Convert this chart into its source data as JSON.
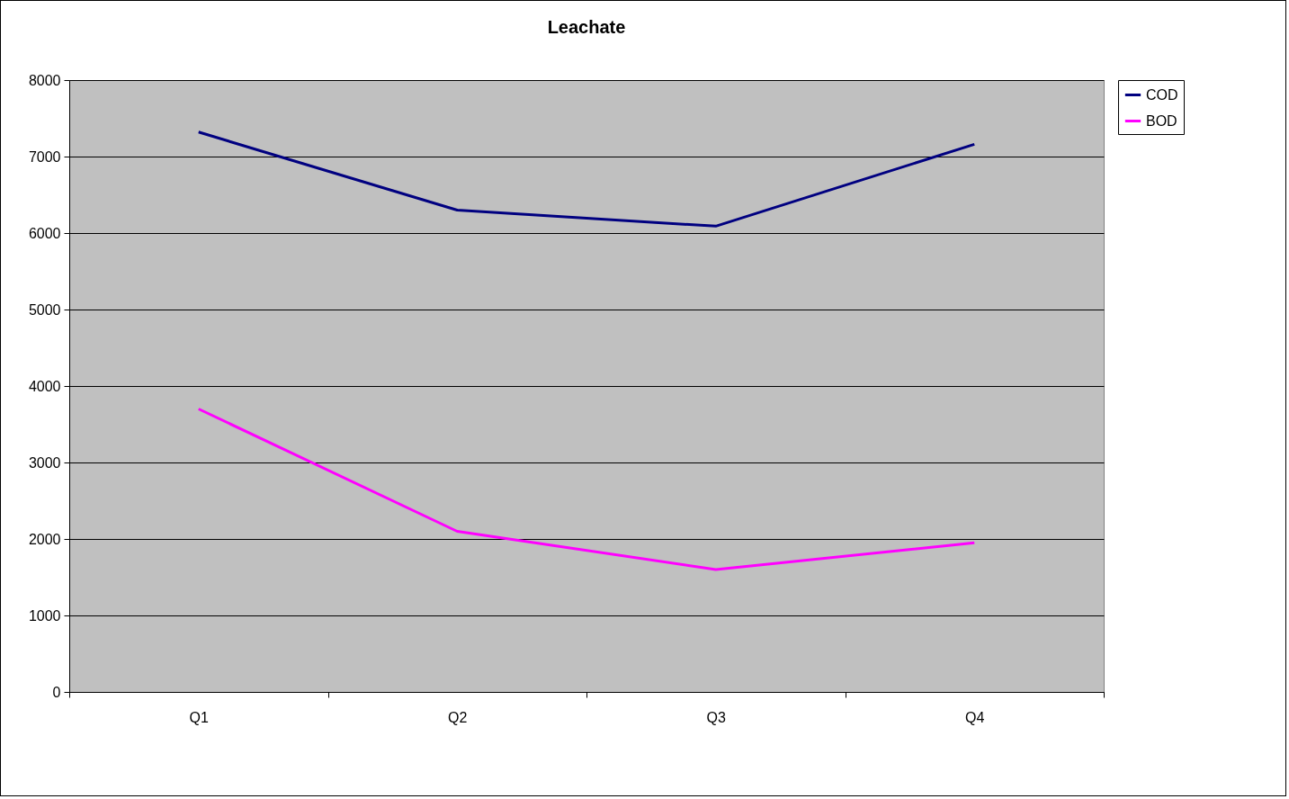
{
  "chart_data": {
    "type": "line",
    "title": "Leachate",
    "categories": [
      "Q1",
      "Q2",
      "Q3",
      "Q4"
    ],
    "series": [
      {
        "name": "COD",
        "color": "#000080",
        "values": [
          7320,
          6300,
          6090,
          7160
        ]
      },
      {
        "name": "BOD",
        "color": "#ff00ff",
        "values": [
          3700,
          2100,
          1600,
          1950
        ]
      }
    ],
    "ylim": [
      0,
      8000
    ],
    "yticks": [
      0,
      1000,
      2000,
      3000,
      4000,
      5000,
      6000,
      7000,
      8000
    ],
    "grid": "y",
    "legend": "right",
    "marker": "none",
    "line_style": "solid"
  }
}
